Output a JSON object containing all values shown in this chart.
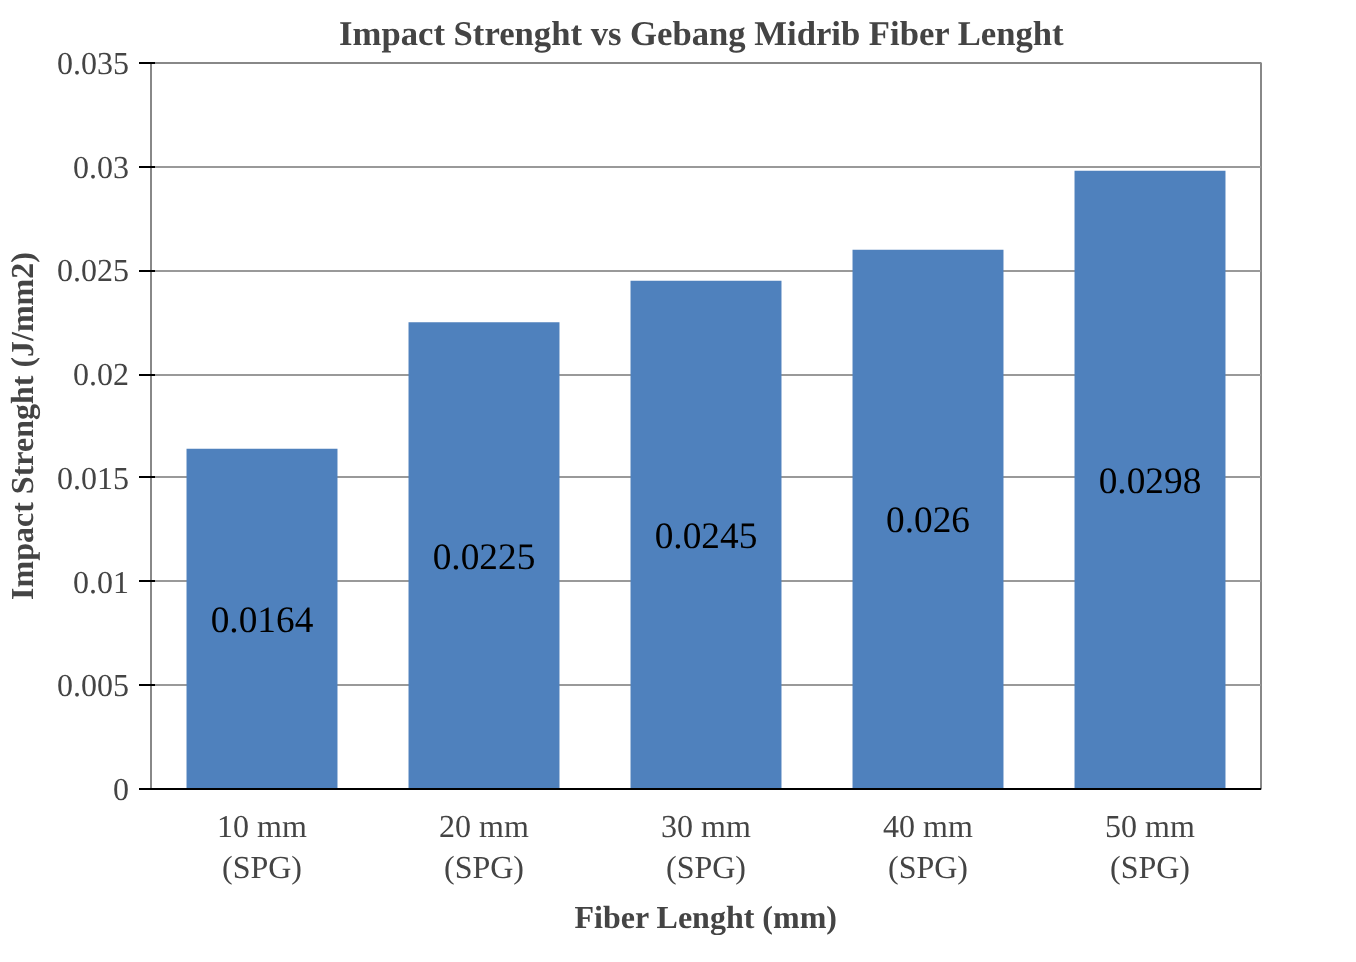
{
  "chart_data": {
    "type": "bar",
    "title": "Impact Strenght vs Gebang Midrib  Fiber Lenght",
    "xlabel": "Fiber Lenght (mm)",
    "ylabel": "Impact Strenght (J/mm2)",
    "categories": [
      "10 mm\n(SPG)",
      "20 mm\n(SPG)",
      "30 mm\n(SPG)",
      "40 mm\n(SPG)",
      "50 mm\n(SPG)"
    ],
    "values": [
      0.0164,
      0.0225,
      0.0245,
      0.026,
      0.0298
    ],
    "color": "#4f81bd",
    "ylim": [
      0,
      0.035
    ],
    "yticks": [
      0,
      {
        "value": 0.005,
        "label": "0.005"
      },
      {
        "value": 0.01,
        "label": "0.01"
      },
      {
        "value": 0.015,
        "label": "0.015"
      },
      {
        "value": 0.02,
        "label": "0.02"
      },
      {
        "value": 0.025,
        "label": "0.025"
      },
      {
        "value": 0.03,
        "label": "0.03"
      },
      {
        "value": 0.035,
        "label": "0.035"
      }
    ],
    "grid": "y",
    "data_labels": true
  }
}
